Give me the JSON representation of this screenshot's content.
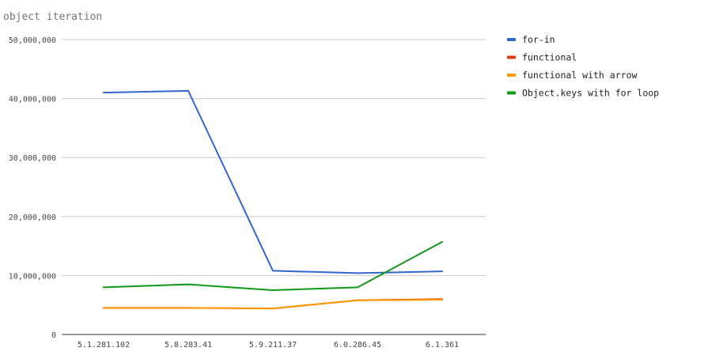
{
  "chart_data": {
    "type": "line",
    "title": "object iteration",
    "xlabel": "",
    "ylabel": "",
    "categories": [
      "5.1.281.102",
      "5.8.283.41",
      "5.9.211.37",
      "6.0.286.45",
      "6.1.361"
    ],
    "ylim": [
      0,
      50000000
    ],
    "yticks": [
      0,
      10000000,
      20000000,
      30000000,
      40000000,
      50000000
    ],
    "ytick_labels": [
      "0",
      "10,000,000",
      "20,000,000",
      "30,000,000",
      "40,000,000",
      "50,000,000"
    ],
    "grid": true,
    "legend_position": "right",
    "series": [
      {
        "name": "for-in",
        "color": "#3366cc",
        "values": [
          41000000,
          41300000,
          10800000,
          10400000,
          10700000
        ]
      },
      {
        "name": "functional",
        "color": "#dc3912",
        "values": [
          4500000,
          4500000,
          4400000,
          5800000,
          6000000
        ]
      },
      {
        "name": "functional with arrow",
        "color": "#ff9900",
        "values": [
          4500000,
          4500000,
          4400000,
          5800000,
          5900000
        ]
      },
      {
        "name": "Object.keys with for loop",
        "color": "#109618",
        "values": [
          8000000,
          8500000,
          7500000,
          8000000,
          15700000
        ]
      }
    ]
  }
}
